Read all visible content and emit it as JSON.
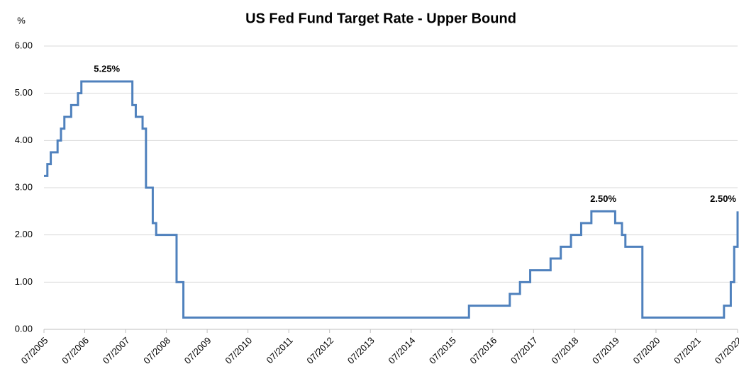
{
  "chart_data": {
    "type": "line",
    "step": "post",
    "title": "US Fed Fund Target Rate - Upper Bound",
    "y_label": "%",
    "x": [
      "07/2005",
      "08/2005",
      "09/2005",
      "11/2005",
      "12/2005",
      "01/2006",
      "03/2006",
      "05/2006",
      "06/2006",
      "09/2007",
      "10/2007",
      "12/2007",
      "01/2008",
      "03/2008",
      "04/2008",
      "10/2008",
      "12/2008",
      "12/2015",
      "12/2016",
      "03/2017",
      "06/2017",
      "12/2017",
      "03/2018",
      "06/2018",
      "09/2018",
      "12/2018",
      "07/2019",
      "09/2019",
      "10/2019",
      "03/2020",
      "03/2022",
      "05/2022",
      "06/2022",
      "07/2022"
    ],
    "series": [
      {
        "name": "Upper Bound",
        "color": "#4f81bd",
        "values": [
          3.25,
          3.5,
          3.75,
          4.0,
          4.25,
          4.5,
          4.75,
          5.0,
          5.25,
          4.75,
          4.5,
          4.25,
          3.0,
          2.25,
          2.0,
          1.0,
          0.25,
          0.5,
          0.75,
          1.0,
          1.25,
          1.5,
          1.75,
          2.0,
          2.25,
          2.5,
          2.25,
          2.0,
          1.75,
          0.25,
          0.5,
          1.0,
          1.75,
          2.5
        ],
        "value_labels": [
          null,
          null,
          null,
          null,
          null,
          null,
          null,
          null,
          "5.25%",
          null,
          null,
          null,
          null,
          null,
          null,
          null,
          null,
          null,
          null,
          null,
          null,
          null,
          null,
          null,
          null,
          "2.50%",
          null,
          null,
          null,
          null,
          null,
          null,
          null,
          "2.50%"
        ]
      }
    ],
    "xlim": [
      "07/2005",
      "07/2022"
    ],
    "xticks": [
      "07/2005",
      "07/2006",
      "07/2007",
      "07/2008",
      "07/2009",
      "07/2010",
      "07/2011",
      "07/2012",
      "07/2013",
      "07/2014",
      "07/2015",
      "07/2016",
      "07/2017",
      "07/2018",
      "07/2019",
      "07/2020",
      "07/2021",
      "07/2022"
    ],
    "ylim": [
      0,
      6
    ],
    "yticks": [
      {
        "value": 0,
        "label": "0.00"
      },
      {
        "value": 1,
        "label": "1.00"
      },
      {
        "value": 2,
        "label": "2.00"
      },
      {
        "value": 3,
        "label": "3.00"
      },
      {
        "value": 4,
        "label": "4.00"
      },
      {
        "value": 5,
        "label": "5.00"
      },
      {
        "value": 6,
        "label": "6.00"
      }
    ],
    "grid": true
  }
}
